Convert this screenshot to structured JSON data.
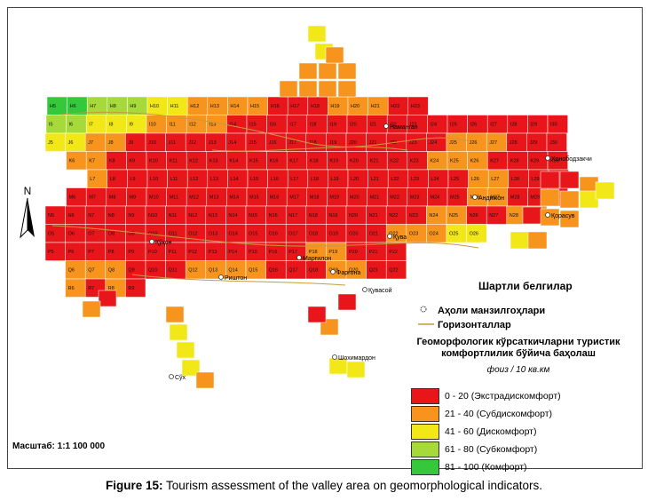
{
  "north_label": "N",
  "legend": {
    "title": "Шартли белгилар",
    "symbols": [
      {
        "label": "Аҳоли манзилгоҳлари",
        "icon": "settlement-icon"
      },
      {
        "label": "Горизонталлар",
        "icon": "contour-line-icon",
        "color": "#c89a3c"
      }
    ],
    "theme_line1": "Геоморфологик кўрсаткичларни туристик",
    "theme_line2": "комфортлилик бўйича баҳолаш",
    "unit": "фоиз / 10 кв.км",
    "classes": [
      {
        "label": "0 - 20 (Экстрадискомфорт)",
        "color": "#e8161b"
      },
      {
        "label": "21 - 40 (Субдискомфорт)",
        "color": "#f7941d"
      },
      {
        "label": "41 - 60 (Дискомфорт)",
        "color": "#f2e818"
      },
      {
        "label": "61 - 80 (Субкомфорт)",
        "color": "#a6d93a"
      },
      {
        "label": "81 - 100 (Комфорт)",
        "color": "#35c83a"
      }
    ]
  },
  "scale_text": "Масштаб: 1:1 100 000",
  "caption_bold": "Figure 15:",
  "caption_text": " Tourism assessment of the valley area on geomorphological indicators.",
  "place_names": [
    "Наманган",
    "Андижон",
    "Хонободзакчи",
    "Қорасув",
    "Қува",
    "Фарғона",
    "Риштон",
    "Қувасой",
    "Марғилон",
    "Шохимардон",
    "Қўқон",
    "Сўх"
  ],
  "grid_labels": {
    "rows": [
      "H",
      "I",
      "J",
      "K",
      "L",
      "M",
      "N",
      "O",
      "P",
      "Q",
      "R"
    ],
    "cols": [
      "5",
      "6",
      "7",
      "8",
      "9",
      "10",
      "11",
      "12",
      "13",
      "14",
      "15",
      "16",
      "17",
      "18",
      "19",
      "20",
      "21",
      "22",
      "23",
      "24",
      "25",
      "26",
      "27",
      "28",
      "29",
      "30"
    ]
  }
}
